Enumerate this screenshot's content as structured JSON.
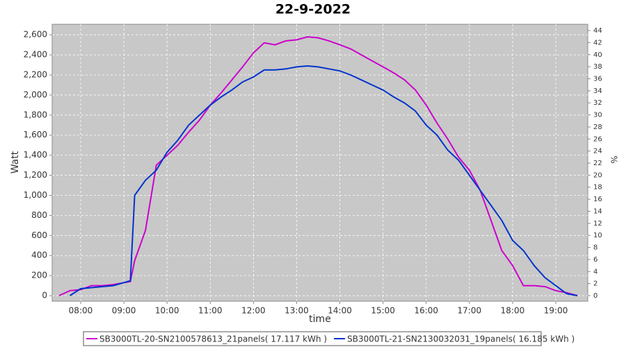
{
  "chart_data": {
    "type": "line",
    "title": "22-9-2022",
    "xlabel": "time",
    "ylabel": "Watt",
    "y2label": "%",
    "x": [
      7.5,
      7.75,
      8.0,
      8.25,
      8.5,
      8.75,
      9.0,
      9.15,
      9.25,
      9.5,
      9.75,
      10.0,
      10.25,
      10.5,
      10.75,
      11.0,
      11.25,
      11.5,
      11.75,
      12.0,
      12.25,
      12.5,
      12.75,
      13.0,
      13.25,
      13.5,
      13.75,
      14.0,
      14.25,
      14.5,
      14.75,
      15.0,
      15.25,
      15.5,
      15.75,
      16.0,
      16.25,
      16.5,
      16.75,
      17.0,
      17.25,
      17.5,
      17.75,
      18.0,
      18.25,
      18.5,
      18.75,
      19.0,
      19.25,
      19.5
    ],
    "series": [
      {
        "name": "SB3000TL-20-SN2100578613_21panels( 17.117 kWh )",
        "color": "#cc00cc",
        "values": [
          0,
          50,
          60,
          100,
          100,
          110,
          130,
          140,
          350,
          650,
          1300,
          1400,
          1500,
          1630,
          1750,
          1900,
          2020,
          2150,
          2280,
          2420,
          2520,
          2500,
          2540,
          2550,
          2580,
          2570,
          2540,
          2500,
          2460,
          2400,
          2340,
          2280,
          2220,
          2150,
          2050,
          1900,
          1720,
          1560,
          1380,
          1250,
          1050,
          750,
          450,
          300,
          100,
          100,
          90,
          50,
          30,
          0
        ]
      },
      {
        "name": "SB3000TL-21-SN2130032031_19panels( 16.185 kWh )",
        "color": "#0033cc",
        "values": [
          null,
          0,
          70,
          80,
          90,
          100,
          130,
          150,
          1000,
          1150,
          1250,
          1430,
          1550,
          1700,
          1800,
          1900,
          1980,
          2050,
          2130,
          2180,
          2250,
          2250,
          2260,
          2280,
          2290,
          2280,
          2260,
          2240,
          2200,
          2150,
          2100,
          2050,
          1980,
          1920,
          1840,
          1700,
          1600,
          1450,
          1350,
          1200,
          1050,
          900,
          750,
          550,
          450,
          300,
          180,
          100,
          20,
          0
        ]
      }
    ],
    "xlim": [
      7.34,
      19.74
    ],
    "xticks": [
      {
        "value": 8,
        "label": "08:00"
      },
      {
        "value": 9,
        "label": "09:00"
      },
      {
        "value": 10,
        "label": "10:00"
      },
      {
        "value": 11,
        "label": "11:00"
      },
      {
        "value": 12,
        "label": "12:00"
      },
      {
        "value": 13,
        "label": "13:00"
      },
      {
        "value": 14,
        "label": "14:00"
      },
      {
        "value": 15,
        "label": "15:00"
      },
      {
        "value": 16,
        "label": "16:00"
      },
      {
        "value": 17,
        "label": "17:00"
      },
      {
        "value": 18,
        "label": "18:00"
      },
      {
        "value": 19,
        "label": "19:00"
      }
    ],
    "ylim": [
      -55,
      2705
    ],
    "yticks": [
      0,
      200,
      400,
      600,
      800,
      {
        "value": 1000,
        "label": "1,000"
      },
      {
        "value": 1200,
        "label": "1,200"
      },
      {
        "value": 1400,
        "label": "1,400"
      },
      {
        "value": 1600,
        "label": "1,600"
      },
      {
        "value": 1800,
        "label": "1,800"
      },
      {
        "value": 2000,
        "label": "2,000"
      },
      {
        "value": 2200,
        "label": "2,200"
      },
      {
        "value": 2400,
        "label": "2,400"
      },
      {
        "value": 2600,
        "label": "2,600"
      }
    ],
    "y2lim": [
      -0.92,
      45.04
    ],
    "y2ticks": [
      0,
      2,
      4,
      6,
      8,
      10,
      12,
      14,
      16,
      18,
      20,
      22,
      24,
      26,
      28,
      30,
      32,
      34,
      36,
      38,
      40,
      42,
      44
    ],
    "grid": true
  }
}
